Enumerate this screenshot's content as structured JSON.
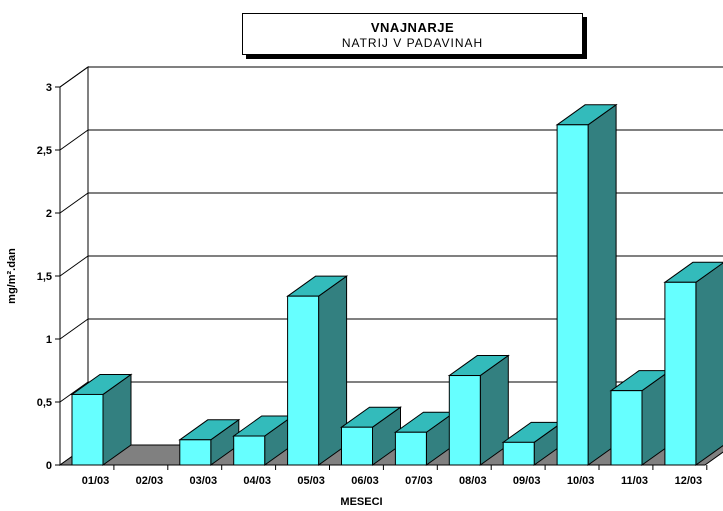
{
  "chart_data": {
    "type": "bar",
    "title": "VNAJNARJE",
    "subtitle": "NATRIJ V PADAVINAH",
    "xlabel": "MESECI",
    "ylabel": "mg/m².dan",
    "categories": [
      "01/03",
      "02/03",
      "03/03",
      "04/03",
      "05/03",
      "06/03",
      "07/03",
      "08/03",
      "09/03",
      "10/03",
      "11/03",
      "12/03"
    ],
    "values": [
      0.56,
      0,
      0.2,
      0.23,
      1.34,
      0.3,
      0.26,
      0.71,
      0.18,
      2.7,
      0.59,
      1.45
    ],
    "yticks": [
      "0",
      "0,5",
      "1",
      "1,5",
      "2",
      "2,5",
      "3"
    ],
    "ylim": [
      0,
      3
    ],
    "grid": true,
    "colors": {
      "bar_front": "#66ffff",
      "bar_top": "#33bbbb",
      "bar_side": "#338080",
      "floor": "#808080"
    }
  }
}
